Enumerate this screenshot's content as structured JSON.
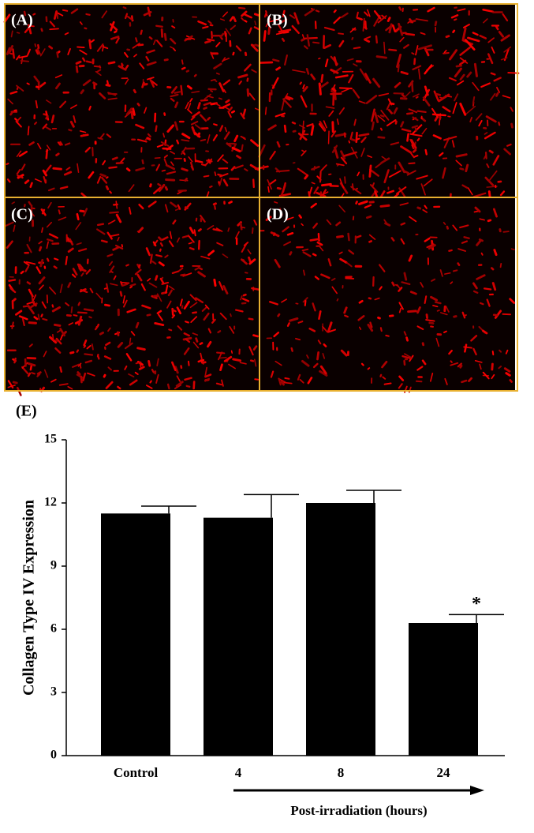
{
  "panels": [
    "(A)",
    "(B)",
    "(C)",
    "(D)"
  ],
  "chart_data": {
    "type": "bar",
    "panel_label": "(E)",
    "y_label": "Collagen Type IV Expression",
    "x_label": "Post-irradiation (hours)",
    "categories": [
      "Control",
      "4",
      "8",
      "24"
    ],
    "values": [
      11.5,
      11.3,
      12.0,
      6.3
    ],
    "errors": [
      0.35,
      1.1,
      0.6,
      0.4
    ],
    "color": "#000000",
    "ylim": [
      0,
      15
    ],
    "yticks": [
      0,
      3,
      6,
      9,
      12,
      15
    ],
    "annotations": [
      {
        "category": "24",
        "text": "*"
      }
    ]
  }
}
